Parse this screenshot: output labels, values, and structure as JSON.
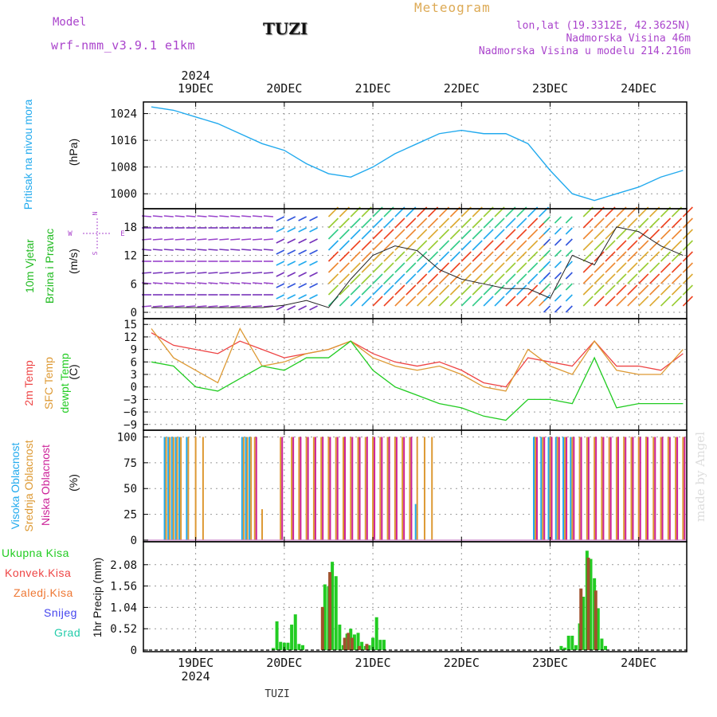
{
  "header": {
    "model_label": "Model",
    "model_name": "wrf-nmm_v3.9.1 e1km",
    "station": "TUZI",
    "meteogram_title": "Meteogram",
    "lonlat": "lon,lat (19.3312E, 42.3625N)",
    "altitude": "Nadmorska Visina 46m",
    "model_altitude": "Nadmorska Visina u modelu 214.216m"
  },
  "colors": {
    "pressure": "#22aaee",
    "wind_label": "#22bb22",
    "direction": "#aa44cc",
    "t2m": "#ee4444",
    "sfc": "#dd9933",
    "dewpt": "#22cc22",
    "cloud_high": "#22aaee",
    "cloud_mid": "#dd9933",
    "cloud_low": "#cc2299",
    "precip_total": "#22cc22",
    "precip_conv": "#ee4444",
    "precip_frozen": "#ee7733",
    "precip_snow": "#4444ee",
    "precip_graupel": "#22ccaa"
  },
  "top_axis": {
    "year": "2024",
    "days": [
      "19DEC",
      "20DEC",
      "21DEC",
      "22DEC",
      "23DEC",
      "24DEC"
    ]
  },
  "bottom_axis": {
    "year": "2024",
    "days": [
      "19DEC",
      "20DEC",
      "21DEC",
      "22DEC",
      "23DEC",
      "24DEC"
    ]
  },
  "footer_station": "TUZI",
  "watermark": "made by Angel",
  "panels": {
    "pressure": {
      "label": "Pritisak na nivou mora",
      "unit": "(hPa)"
    },
    "wind": {
      "label1": "10m Vjetar",
      "label2": "Brzina i Pravac",
      "unit": "(m/s)",
      "compass": {
        "n": "N",
        "s": "S",
        "e": "E",
        "w": "W"
      }
    },
    "temp": {
      "label1": "2m Temp",
      "label2": "SFC Temp",
      "label3": "dewpt Temp",
      "unit": "(C)"
    },
    "cloud": {
      "label1": "Visoka Oblacnost",
      "label2": "Srednja Oblacnost",
      "label3": "Niska Oblacnost",
      "unit": "(%)"
    },
    "precip": {
      "legend": [
        "Ukupna Kisa",
        "Konvek.Kisa",
        "Zaledj.Kisa",
        "Snijeg",
        "Grad"
      ],
      "unit": "1hr Precip (mm)"
    }
  },
  "chart_data": [
    {
      "type": "line",
      "name": "pressure",
      "ylabel": "(hPa)",
      "ylim": [
        996,
        1027
      ],
      "yticks": [
        1000,
        1008,
        1016,
        1024
      ],
      "x": [
        0,
        6,
        12,
        18,
        24,
        30,
        36,
        42,
        48,
        54,
        60,
        66,
        72,
        78,
        84,
        90,
        96,
        102,
        108,
        114,
        120,
        126,
        132,
        138,
        144
      ],
      "series": [
        {
          "values": [
            1026,
            1025,
            1023,
            1021,
            1018,
            1015,
            1013,
            1009,
            1006,
            1005,
            1008,
            1012,
            1015,
            1018,
            1019,
            1018,
            1018,
            1015,
            1007,
            1000,
            998,
            1000,
            1002,
            1005,
            1007
          ]
        }
      ]
    },
    {
      "type": "line",
      "name": "wind",
      "ylabel": "(m/s)",
      "ylim": [
        -1,
        21.5
      ],
      "yticks": [
        0,
        6,
        12,
        18
      ],
      "x": [
        0,
        6,
        12,
        18,
        24,
        30,
        36,
        42,
        48,
        54,
        60,
        66,
        72,
        78,
        84,
        90,
        96,
        102,
        108,
        114,
        120,
        126,
        132,
        138,
        144
      ],
      "series": [
        {
          "values": [
            1,
            1,
            1,
            1,
            1,
            1,
            1.5,
            2.5,
            1,
            7,
            12,
            14,
            13,
            9,
            7,
            6,
            5,
            5,
            3,
            12,
            10,
            18,
            17,
            14,
            12
          ]
        }
      ]
    },
    {
      "type": "line",
      "name": "temperature",
      "ylabel": "(C)",
      "ylim": [
        -10,
        16
      ],
      "yticks": [
        -9,
        -6,
        -3,
        0,
        3,
        6,
        9,
        12,
        15
      ],
      "x": [
        0,
        6,
        12,
        18,
        24,
        30,
        36,
        42,
        48,
        54,
        60,
        66,
        72,
        78,
        84,
        90,
        96,
        102,
        108,
        114,
        120,
        126,
        132,
        138,
        144
      ],
      "series": [
        {
          "name": "2m Temp",
          "values": [
            13,
            10,
            9,
            8,
            11,
            9,
            7,
            8,
            9,
            11,
            8,
            6,
            5,
            6,
            4,
            1,
            0,
            7,
            6,
            5,
            11,
            5,
            5,
            4,
            8
          ]
        },
        {
          "name": "SFC Temp",
          "values": [
            14,
            7,
            4,
            1,
            14,
            5,
            6,
            8,
            9,
            11,
            7,
            5,
            4,
            5,
            3,
            0,
            -1,
            9,
            5,
            3,
            11,
            4,
            3,
            3,
            9
          ]
        },
        {
          "name": "dewpt Temp",
          "values": [
            6,
            5,
            0,
            -1,
            2,
            5,
            4,
            7,
            7,
            11,
            4,
            0,
            -2,
            -4,
            -5,
            -7,
            -8,
            -3,
            -3,
            -4,
            7,
            -5,
            -4,
            -4,
            -4
          ]
        }
      ]
    },
    {
      "type": "bar",
      "name": "cloud",
      "ylabel": "(%)",
      "ylim": [
        0,
        105
      ],
      "yticks": [
        0,
        25,
        50,
        75,
        100
      ],
      "x": [
        4,
        5,
        6,
        7,
        8,
        10,
        12,
        14,
        25,
        26,
        27,
        28,
        30,
        35,
        38,
        40,
        42,
        44,
        46,
        48,
        50,
        52,
        54,
        56,
        58,
        60,
        62,
        64,
        66,
        68,
        70,
        72,
        74,
        76,
        80,
        90,
        104,
        106,
        108,
        110,
        112,
        114,
        116,
        118,
        120,
        122,
        124,
        126,
        128,
        130,
        132,
        134,
        136,
        138,
        140,
        142,
        144
      ],
      "series": [
        {
          "name": "Visoka Oblacnost",
          "values": [
            100,
            100,
            100,
            100,
            100,
            100,
            0,
            0,
            100,
            100,
            100,
            0,
            0,
            0,
            0,
            0,
            0,
            0,
            0,
            0,
            0,
            0,
            0,
            0,
            0,
            0,
            0,
            0,
            0,
            0,
            0,
            35,
            0,
            0,
            0,
            0,
            100,
            100,
            100,
            100,
            100,
            100,
            0,
            0,
            0,
            0,
            0,
            0,
            0,
            0,
            0,
            0,
            0,
            0,
            0,
            0,
            0
          ]
        },
        {
          "name": "Srednja Oblacnost",
          "values": [
            100,
            100,
            100,
            100,
            100,
            100,
            100,
            100,
            100,
            100,
            100,
            100,
            30,
            100,
            100,
            100,
            100,
            100,
            100,
            100,
            100,
            100,
            100,
            100,
            100,
            100,
            100,
            100,
            100,
            100,
            100,
            100,
            100,
            100,
            0,
            0,
            100,
            100,
            100,
            100,
            100,
            100,
            100,
            100,
            100,
            100,
            100,
            100,
            100,
            100,
            100,
            100,
            100,
            100,
            100,
            100,
            100
          ]
        },
        {
          "name": "Niska Oblacnost",
          "values": [
            0,
            0,
            0,
            0,
            0,
            0,
            0,
            0,
            0,
            0,
            0,
            100,
            0,
            100,
            100,
            100,
            100,
            100,
            100,
            100,
            100,
            100,
            100,
            100,
            100,
            100,
            100,
            100,
            100,
            100,
            100,
            0,
            0,
            0,
            0,
            0,
            100,
            100,
            100,
            100,
            100,
            100,
            100,
            100,
            100,
            100,
            100,
            100,
            100,
            100,
            100,
            100,
            100,
            100,
            100,
            100,
            100
          ]
        }
      ]
    },
    {
      "type": "bar",
      "name": "precip",
      "ylabel": "1hr Precip (mm)",
      "ylim": [
        0,
        2.6
      ],
      "yticks": [
        0,
        0.52,
        1.04,
        1.56,
        2.08
      ],
      "x": [
        33,
        34,
        35,
        36,
        37,
        38,
        39,
        40,
        41,
        42,
        47,
        48,
        49,
        50,
        51,
        52,
        53,
        54,
        55,
        56,
        57,
        58,
        59,
        60,
        61,
        62,
        63,
        64,
        65,
        66,
        67,
        68,
        69,
        70,
        111,
        112,
        113,
        114,
        115,
        116,
        117,
        118,
        119,
        120,
        121,
        122,
        123
      ],
      "series": [
        {
          "name": "Ukupna Kisa",
          "values": [
            0.05,
            0.7,
            0.2,
            0.18,
            0.18,
            0.62,
            0.87,
            0.15,
            0.12,
            0,
            1.6,
            1.55,
            2.15,
            1.8,
            0.62,
            0.12,
            0.4,
            0.52,
            0.38,
            0.42,
            0.2,
            0.1,
            0.12,
            0.3,
            0.8,
            0.25,
            0.25,
            0,
            0,
            0,
            0,
            0,
            0,
            0,
            0.1,
            0.06,
            0.35,
            0.35,
            0.12,
            0.65,
            1.3,
            2.42,
            2.22,
            1.75,
            1.02,
            0.28,
            0.1
          ]
        },
        {
          "name": "Konvek.Kisa",
          "values": [
            0,
            0,
            0,
            0,
            0,
            0,
            0,
            0,
            0,
            0,
            1.05,
            0,
            1.9,
            0,
            0,
            0,
            0.3,
            0.42,
            0.3,
            0,
            0.1,
            0,
            0.15,
            0,
            0,
            0,
            0,
            0,
            0,
            0,
            0,
            0,
            0,
            0,
            0,
            0,
            0,
            0,
            0,
            0,
            1.5,
            0,
            2.25,
            0,
            1.45,
            0,
            0
          ]
        }
      ]
    }
  ]
}
